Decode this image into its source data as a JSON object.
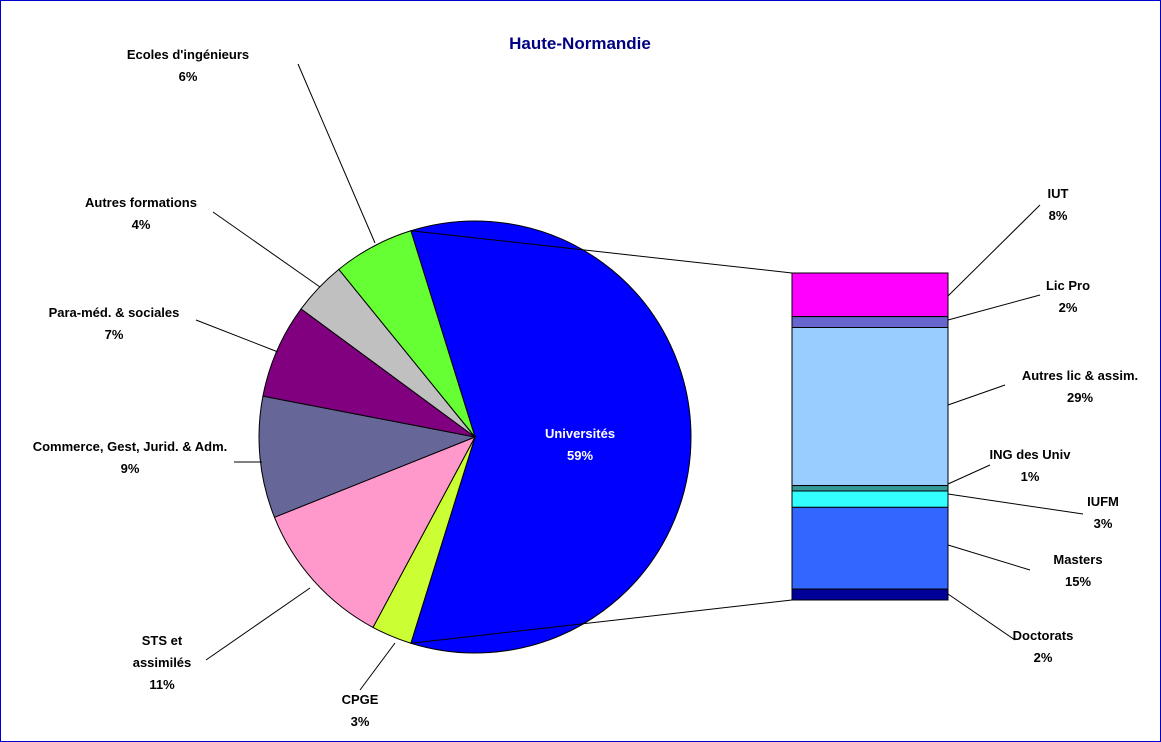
{
  "chart_data": {
    "type": "pie",
    "title": "Haute-Normandie",
    "categories": [
      "Universités",
      "CPGE",
      "STS et assimilés",
      "Commerce, Gest, Jurid. & Adm.",
      "Para-méd. & sociales",
      "Autres formations",
      "Ecoles d'ingénieurs"
    ],
    "values": [
      59,
      3,
      11,
      9,
      7,
      4,
      6
    ],
    "value_labels": [
      "59%",
      "3%",
      "11%",
      "9%",
      "7%",
      "4%",
      "6%"
    ],
    "colors": [
      "#0000ff",
      "#ccff33",
      "#ff99cc",
      "#666699",
      "#800080",
      "#c0c0c0",
      "#66ff33"
    ],
    "bar": {
      "categories": [
        "IUT",
        "Lic Pro",
        "Autres lic & assim.",
        "ING des Univ",
        "IUFM",
        "Masters",
        "Doctorats"
      ],
      "values": [
        8,
        2,
        29,
        1,
        3,
        15,
        2
      ],
      "value_labels": [
        "8%",
        "2%",
        "29%",
        "1%",
        "3%",
        "15%",
        "2%"
      ],
      "colors": [
        "#ff00ff",
        "#6666cc",
        "#99ccff",
        "#339999",
        "#33ffff",
        "#3366ff",
        "#000099"
      ]
    }
  }
}
